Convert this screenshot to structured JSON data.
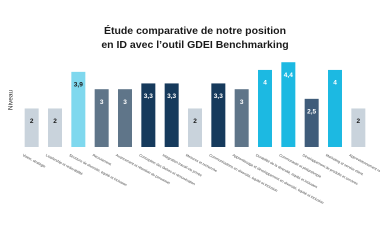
{
  "chart_data": {
    "type": "bar",
    "title": [
      "Étude comparative de notre position",
      "en ID avec l’outil GDEI Benchmarking"
    ],
    "y_label": "Niveau",
    "categories": [
      "Vision, stratégie",
      "Leadership et redevabilité",
      "Structure de diversité, équité et inclusion",
      "Recrutement",
      "Avancement et rétention du personnel",
      "Conception des tâches et rémunération",
      "Intégration travail-vie privée",
      "Mesures et recherche",
      "Communications en diversité, équité et inclusion",
      "Apprentissage et développement en diversité, équité et inclusion",
      "Durabilité de la diversité, équité et inclusion",
      "Communauté et philanthropie",
      "Développement de produits et services",
      "Marketing et service client",
      "Approvisionnement responsable"
    ],
    "values": [
      2,
      2,
      3.9,
      3,
      3,
      3.3,
      3.3,
      2,
      3.3,
      3,
      4,
      4.4,
      2.5,
      4,
      2
    ],
    "value_labels": [
      "2",
      "2",
      "3,9",
      "3",
      "3",
      "3,3",
      "3,3",
      "2",
      "3,3",
      "3",
      "4",
      "4,4",
      "2,5",
      "4",
      "2"
    ],
    "colors": [
      "#c9d3dc",
      "#c9d3dc",
      "#7fd8ee",
      "#5f7589",
      "#5f7589",
      "#163a5c",
      "#163a5c",
      "#c9d3dc",
      "#163a5c",
      "#5f7589",
      "#1cb9e2",
      "#1cb9e2",
      "#3f5c7a",
      "#1cb9e2",
      "#c9d3dc"
    ],
    "ylim": [
      0,
      4.5
    ]
  }
}
